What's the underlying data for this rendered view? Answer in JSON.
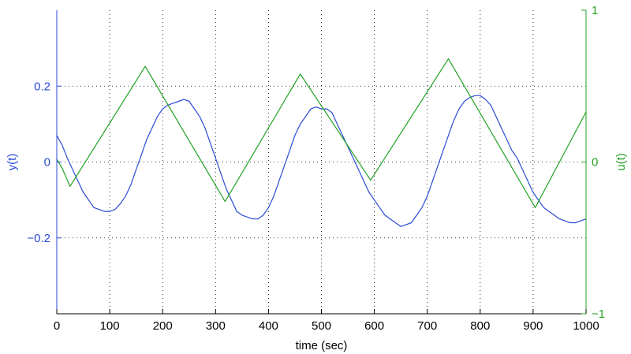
{
  "chart_data": {
    "type": "line",
    "title": "",
    "xlabel": "time (sec)",
    "ylabel_left": "y(t)",
    "ylabel_right": "u(t)",
    "xlim": [
      0,
      1000
    ],
    "ylim_left": [
      -0.4,
      0.4
    ],
    "ylim_right": [
      -1,
      1
    ],
    "grid": true,
    "x_ticks": [
      0,
      100,
      200,
      300,
      400,
      500,
      600,
      700,
      800,
      900,
      1000
    ],
    "x_tick_labels": [
      "0",
      "100",
      "200",
      "300",
      "400",
      "500",
      "600",
      "700",
      "800",
      "900",
      "1000"
    ],
    "y_left_ticks": [
      -0.2,
      0,
      0.2
    ],
    "y_left_tick_labels": [
      "−0.2",
      "0",
      "0.2"
    ],
    "y_right_ticks": [
      -1,
      0,
      1
    ],
    "y_right_tick_labels": [
      "−1",
      "0",
      "1"
    ],
    "colors": {
      "left_axis": "#2b4bd6",
      "right_axis": "#21a221"
    },
    "series": [
      {
        "axis": "left",
        "color": "#2b4bd6",
        "x": [
          0,
          10,
          20,
          30,
          40,
          50,
          60,
          70,
          80,
          90,
          100,
          110,
          120,
          130,
          140,
          150,
          160,
          170,
          180,
          190,
          200,
          210,
          220,
          230,
          240,
          250,
          260,
          270,
          280,
          290,
          300,
          310,
          320,
          330,
          340,
          350,
          360,
          370,
          380,
          390,
          400,
          410,
          420,
          430,
          440,
          450,
          460,
          470,
          480,
          490,
          500,
          510,
          520,
          530,
          540,
          550,
          560,
          570,
          580,
          590,
          600,
          610,
          620,
          630,
          640,
          650,
          660,
          670,
          680,
          690,
          700,
          710,
          720,
          730,
          740,
          750,
          760,
          770,
          780,
          790,
          800,
          810,
          820,
          830,
          840,
          850,
          860,
          870,
          880,
          890,
          900,
          910,
          920,
          930,
          940,
          950,
          960,
          970,
          980,
          990,
          1000
        ],
        "y": [
          0.07,
          0.045,
          0.01,
          -0.02,
          -0.05,
          -0.08,
          -0.1,
          -0.12,
          -0.125,
          -0.13,
          -0.13,
          -0.125,
          -0.11,
          -0.09,
          -0.06,
          -0.02,
          0.02,
          0.06,
          0.09,
          0.12,
          0.14,
          0.15,
          0.155,
          0.16,
          0.165,
          0.16,
          0.14,
          0.12,
          0.09,
          0.05,
          0.01,
          -0.03,
          -0.07,
          -0.1,
          -0.13,
          -0.14,
          -0.145,
          -0.15,
          -0.15,
          -0.14,
          -0.12,
          -0.09,
          -0.05,
          -0.01,
          0.03,
          0.07,
          0.1,
          0.12,
          0.14,
          0.145,
          0.14,
          0.14,
          0.13,
          0.1,
          0.07,
          0.04,
          0.01,
          -0.02,
          -0.05,
          -0.08,
          -0.1,
          -0.12,
          -0.14,
          -0.15,
          -0.16,
          -0.17,
          -0.165,
          -0.16,
          -0.14,
          -0.12,
          -0.09,
          -0.05,
          -0.01,
          0.03,
          0.07,
          0.11,
          0.14,
          0.16,
          0.17,
          0.175,
          0.175,
          0.165,
          0.15,
          0.12,
          0.09,
          0.06,
          0.03,
          0.01,
          -0.02,
          -0.05,
          -0.08,
          -0.1,
          -0.12,
          -0.13,
          -0.14,
          -0.15,
          -0.155,
          -0.16,
          -0.16,
          -0.155,
          -0.15
        ]
      },
      {
        "axis": "right",
        "color": "#21a221",
        "x": [
          0,
          10,
          25,
          167,
          318,
          460,
          593,
          740,
          904,
          1000
        ],
        "y": [
          0.02,
          -0.04,
          -0.16,
          0.63,
          -0.26,
          0.58,
          -0.12,
          0.68,
          -0.3,
          0.33
        ]
      }
    ]
  }
}
